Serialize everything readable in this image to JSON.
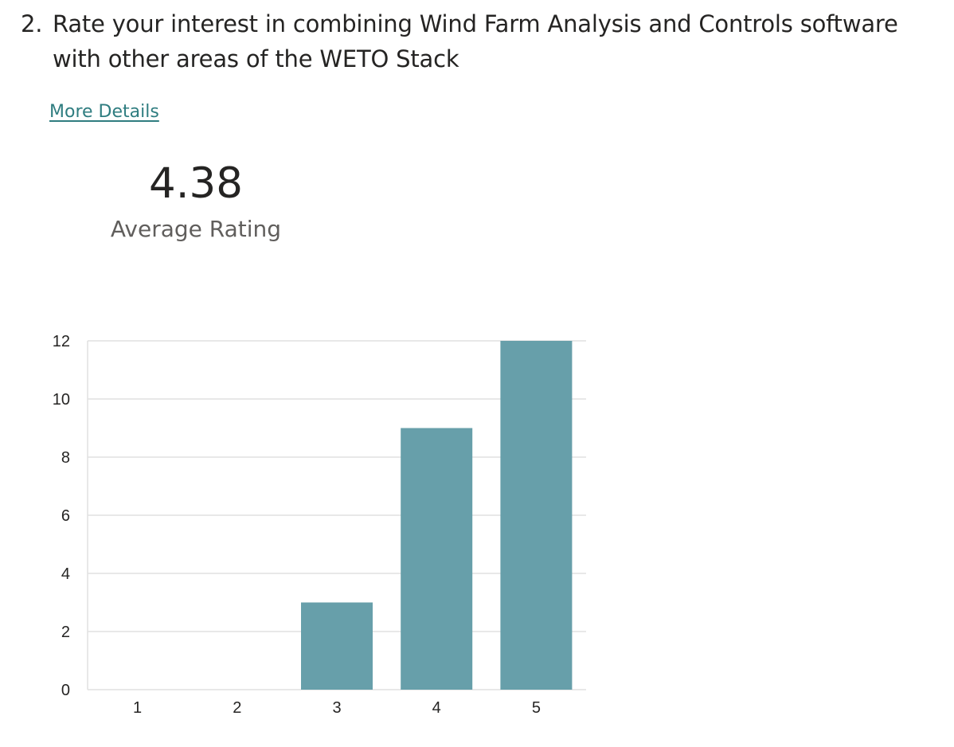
{
  "question": {
    "number": "2.",
    "text": "Rate your interest in combining Wind Farm Analysis and Controls software with other areas of the WETO Stack"
  },
  "more_details_label": "More Details",
  "summary": {
    "average_value": "4.38",
    "average_label": "Average Rating"
  },
  "colors": {
    "bar": "#679faa",
    "gridline": "#e1e1e1",
    "link": "#2f7d80"
  },
  "chart_data": {
    "type": "bar",
    "categories": [
      "1",
      "2",
      "3",
      "4",
      "5"
    ],
    "values": [
      0,
      0,
      3,
      9,
      12
    ],
    "ylim": [
      0,
      12
    ],
    "yticks": [
      0,
      2,
      4,
      6,
      8,
      10,
      12
    ],
    "title": "",
    "xlabel": "",
    "ylabel": "",
    "grid": true
  }
}
